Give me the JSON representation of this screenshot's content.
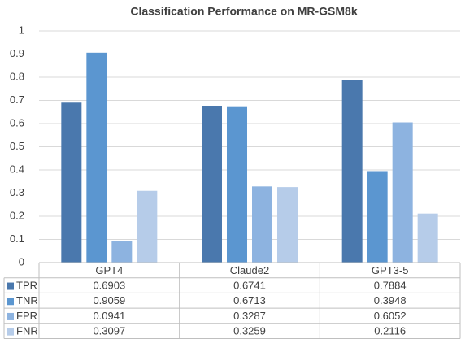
{
  "chart_data": {
    "type": "bar",
    "title": "Classification Performance on MR-GSM8k",
    "categories": [
      "GPT4",
      "Claude2",
      "GPT3-5"
    ],
    "series": [
      {
        "name": "TPR",
        "color": "#4a78ad",
        "values": [
          0.6903,
          0.6741,
          0.7884
        ]
      },
      {
        "name": "TNR",
        "color": "#5b96d0",
        "values": [
          0.9059,
          0.6713,
          0.3948
        ]
      },
      {
        "name": "FPR",
        "color": "#8db3e0",
        "values": [
          0.0941,
          0.3287,
          0.6052
        ]
      },
      {
        "name": "FNR",
        "color": "#b6cce9",
        "values": [
          0.3097,
          0.3259,
          0.2116
        ]
      }
    ],
    "ylim": [
      0,
      1
    ],
    "yticks": [
      0,
      0.1,
      0.2,
      0.3,
      0.4,
      0.5,
      0.6,
      0.7,
      0.8,
      0.9,
      1
    ],
    "grid": true,
    "data_table": true
  }
}
